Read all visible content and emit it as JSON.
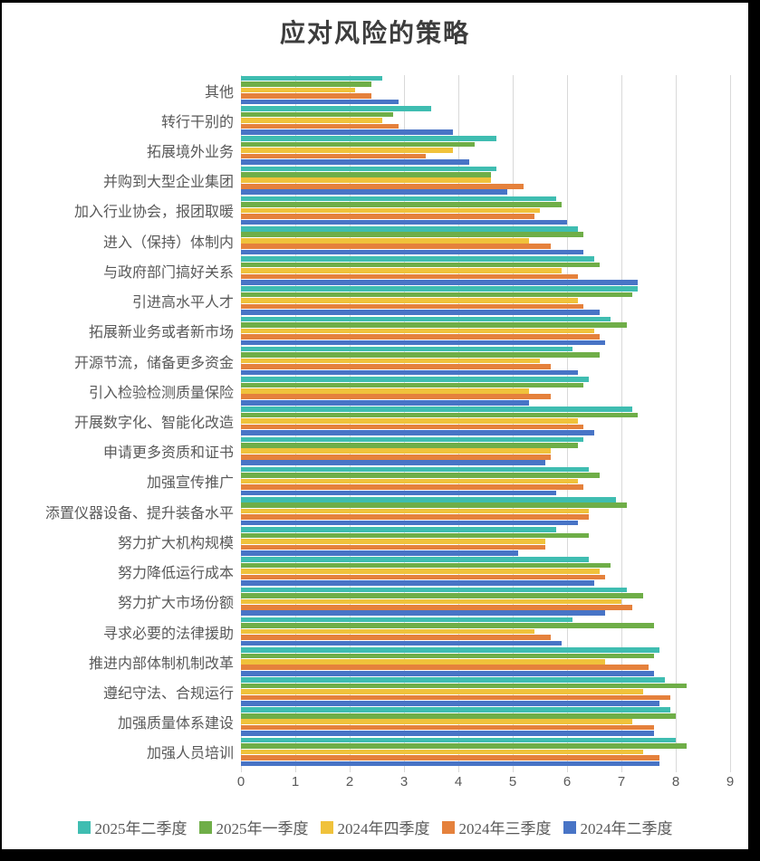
{
  "title": "应对风险的策略",
  "chart_data": {
    "type": "bar",
    "orientation": "horizontal",
    "title": "应对风险的策略",
    "categories": [
      "其他",
      "转行干别的",
      "拓展境外业务",
      "并购到大型企业集团",
      "加入行业协会，报团取暖",
      "进入（保持）体制内",
      "与政府部门搞好关系",
      "引进高水平人才",
      "拓展新业务或者新市场",
      "开源节流，储备更多资金",
      "引入检验检测质量保险",
      "开展数字化、智能化改造",
      "申请更多资质和证书",
      "加强宣传推广",
      "添置仪器设备、提升装备水平",
      "努力扩大机构规模",
      "努力降低运行成本",
      "努力扩大市场份额",
      "寻求必要的法律援助",
      "推进内部体制机制改革",
      "遵纪守法、合规运行",
      "加强质量体系建设",
      "加强人员培训"
    ],
    "series": [
      {
        "name": "2025年二季度",
        "color": "#3fbdb1",
        "values": [
          2.6,
          3.5,
          4.7,
          4.7,
          5.8,
          6.2,
          6.5,
          7.3,
          6.8,
          6.1,
          6.4,
          7.2,
          6.3,
          6.4,
          6.9,
          5.8,
          6.4,
          7.1,
          6.1,
          7.7,
          7.8,
          7.9,
          8.0
        ]
      },
      {
        "name": "2025年一季度",
        "color": "#6fae48",
        "values": [
          2.4,
          2.8,
          4.3,
          4.6,
          5.9,
          6.3,
          6.6,
          7.2,
          7.1,
          6.6,
          6.3,
          7.3,
          6.2,
          6.6,
          7.1,
          6.4,
          6.8,
          7.4,
          7.6,
          7.6,
          8.2,
          8.0,
          8.2
        ]
      },
      {
        "name": "2024年四季度",
        "color": "#f0c23b",
        "values": [
          2.1,
          2.6,
          3.9,
          4.6,
          5.5,
          5.3,
          5.9,
          6.2,
          6.5,
          5.5,
          5.3,
          6.2,
          5.7,
          6.2,
          6.4,
          5.6,
          6.6,
          7.0,
          5.4,
          6.7,
          7.4,
          7.2,
          7.4
        ]
      },
      {
        "name": "2024年三季度",
        "color": "#e5813c",
        "values": [
          2.4,
          2.9,
          3.4,
          5.2,
          5.4,
          5.7,
          6.2,
          6.3,
          6.6,
          5.7,
          5.7,
          6.3,
          5.7,
          6.3,
          6.4,
          5.6,
          6.7,
          7.2,
          5.7,
          7.5,
          7.9,
          7.6,
          7.7
        ]
      },
      {
        "name": "2024年二季度",
        "color": "#4874c6",
        "values": [
          2.9,
          3.9,
          4.2,
          4.9,
          6.0,
          6.3,
          7.3,
          6.6,
          6.7,
          6.2,
          5.3,
          6.5,
          5.6,
          5.8,
          6.2,
          5.1,
          6.5,
          6.7,
          5.9,
          7.6,
          7.7,
          7.6,
          7.7
        ]
      }
    ],
    "xlim": [
      0,
      9
    ],
    "x_ticks": [
      0,
      1,
      2,
      3,
      4,
      5,
      6,
      7,
      8,
      9
    ],
    "grid": "vertical-only",
    "gridline_color": "#d9d9d9",
    "legend_position": "bottom",
    "axis_label_color": "#595959"
  }
}
